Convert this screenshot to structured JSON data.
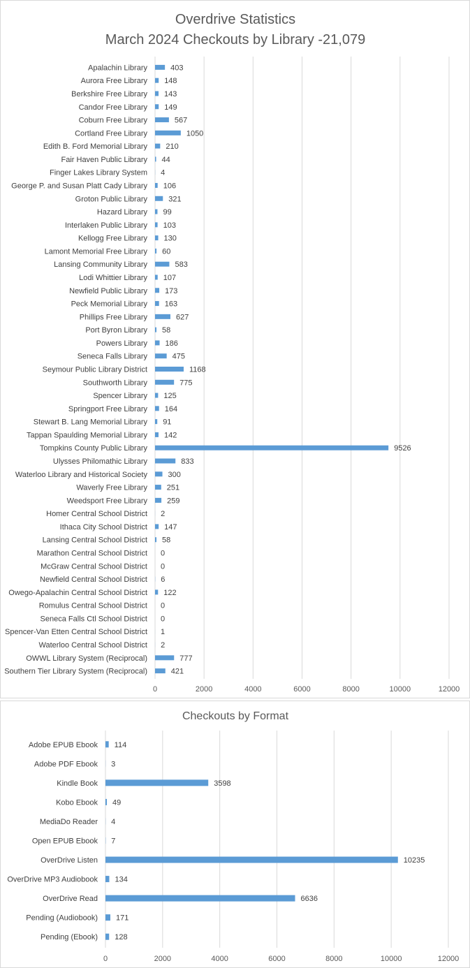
{
  "chart_data": [
    {
      "type": "bar",
      "orientation": "horizontal",
      "title": "Overdrive Statistics",
      "subtitle": "March 2024 Checkouts by Library -21,079",
      "categories": [
        "Apalachin Library",
        "Aurora Free Library",
        "Berkshire Free Library",
        "Candor Free Library",
        "Coburn Free Library",
        "Cortland Free Library",
        "Edith B. Ford Memorial Library",
        "Fair Haven Public Library",
        "Finger Lakes Library System",
        "George P. and Susan Platt Cady Library",
        "Groton Public Library",
        "Hazard Library",
        "Interlaken Public Library",
        "Kellogg Free Library",
        "Lamont Memorial Free Library",
        "Lansing Community Library",
        "Lodi Whittier Library",
        "Newfield Public Library",
        "Peck Memorial Library",
        "Phillips Free Library",
        "Port Byron Library",
        "Powers Library",
        "Seneca Falls Library",
        "Seymour Public Library District",
        "Southworth Library",
        "Spencer Library",
        "Springport Free Library",
        "Stewart B. Lang Memorial Library",
        "Tappan Spaulding Memorial Library",
        "Tompkins County Public Library",
        "Ulysses Philomathic Library",
        "Waterloo Library and Historical Society",
        "Waverly Free Library",
        "Weedsport Free Library",
        "Homer Central School District",
        "Ithaca City School District",
        "Lansing Central School District",
        "Marathon Central School District",
        "McGraw Central School District",
        "Newfield Central School District",
        "Owego-Apalachin Central School District",
        "Romulus Central School District",
        "Seneca Falls Ctl School District",
        "Spencer-Van Etten Central School District",
        "Waterloo Central School District",
        "OWWL Library System (Reciprocal)",
        "Southern Tier Library System (Reciprocal)"
      ],
      "values": [
        403,
        148,
        143,
        149,
        567,
        1050,
        210,
        44,
        4,
        106,
        321,
        99,
        103,
        130,
        60,
        583,
        107,
        173,
        163,
        627,
        58,
        186,
        475,
        1168,
        775,
        125,
        164,
        91,
        142,
        9526,
        833,
        300,
        251,
        259,
        2,
        147,
        58,
        0,
        0,
        6,
        122,
        0,
        0,
        1,
        2,
        777,
        421
      ],
      "xlim": [
        0,
        12000
      ],
      "xticks": [
        "0",
        "2000",
        "4000",
        "6000",
        "8000",
        "10000",
        "12000"
      ],
      "grid": true,
      "legend": "none",
      "bar_color": "#5b9bd5",
      "data_labels": true
    },
    {
      "type": "bar",
      "orientation": "horizontal",
      "title": "Checkouts by Format",
      "categories": [
        "Adobe EPUB Ebook",
        "Adobe PDF Ebook",
        "Kindle Book",
        "Kobo Ebook",
        "MediaDo Reader",
        "Open EPUB Ebook",
        "OverDrive Listen",
        "OverDrive MP3 Audiobook",
        "OverDrive Read",
        "Pending (Audiobook)",
        "Pending (Ebook)"
      ],
      "values": [
        114,
        3,
        3598,
        49,
        4,
        7,
        10235,
        134,
        6636,
        171,
        128
      ],
      "xlim": [
        0,
        12000
      ],
      "xticks": [
        "0",
        "2000",
        "4000",
        "6000",
        "8000",
        "10000",
        "12000"
      ],
      "grid": true,
      "legend": "none",
      "bar_color": "#5b9bd5",
      "data_labels": true
    }
  ]
}
